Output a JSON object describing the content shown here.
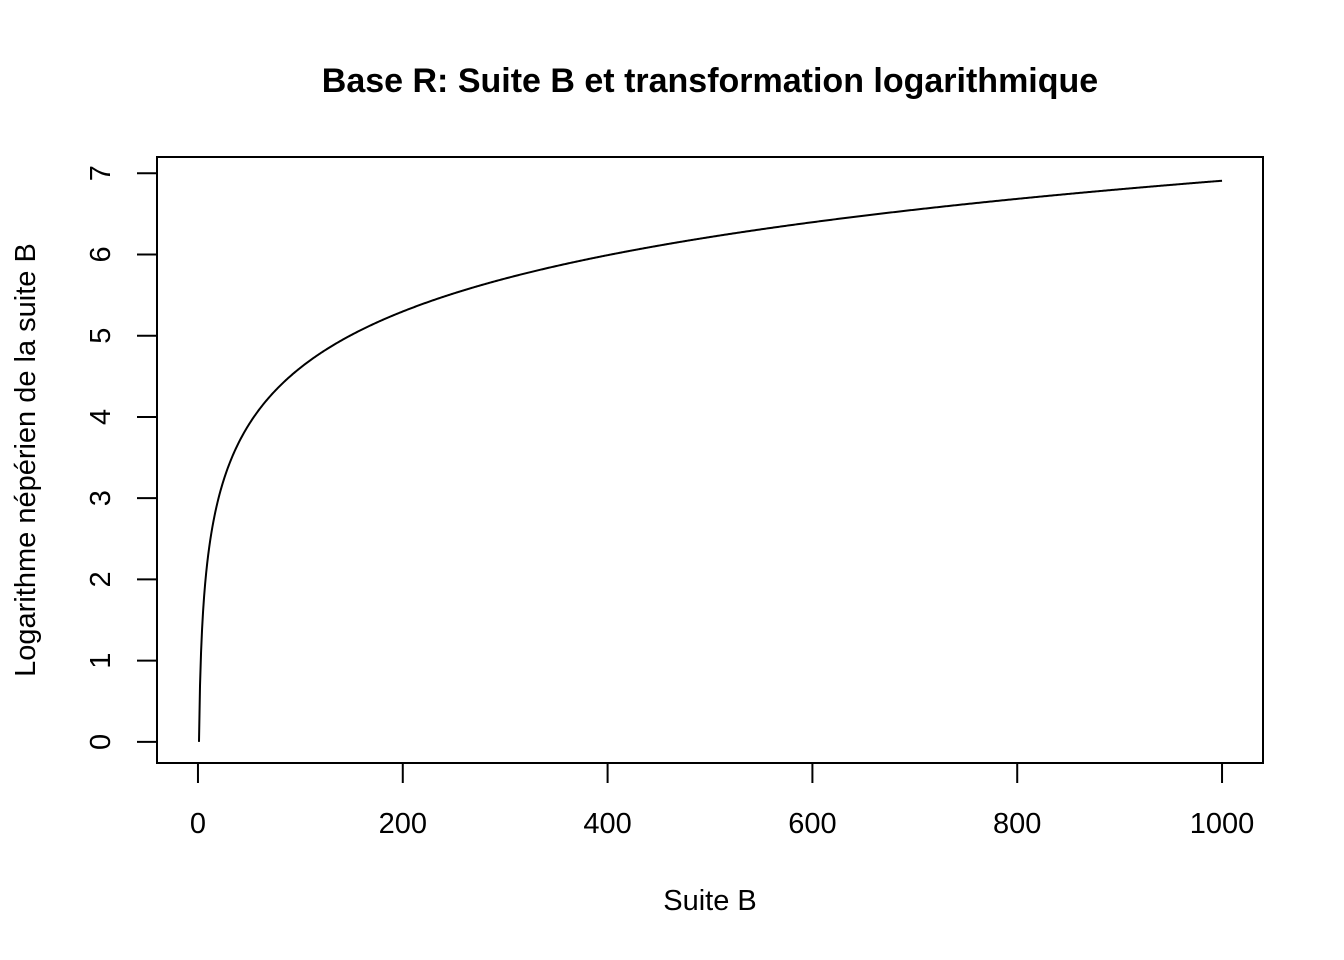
{
  "chart_data": {
    "type": "line",
    "title": "Base R: Suite B et transformation logarithmique",
    "xlabel": "Suite B",
    "ylabel": "Logarithme népérien de la suite B",
    "xlim": [
      -40,
      1040
    ],
    "ylim": [
      -0.26,
      7.2
    ],
    "x_ticks": [
      0,
      200,
      400,
      600,
      800,
      1000
    ],
    "y_ticks": [
      0,
      1,
      2,
      3,
      4,
      5,
      6,
      7
    ],
    "grid": false,
    "legend": "none",
    "series": [
      {
        "function": "log",
        "x_range": [
          1,
          1000
        ],
        "color": "#000000"
      }
    ]
  }
}
